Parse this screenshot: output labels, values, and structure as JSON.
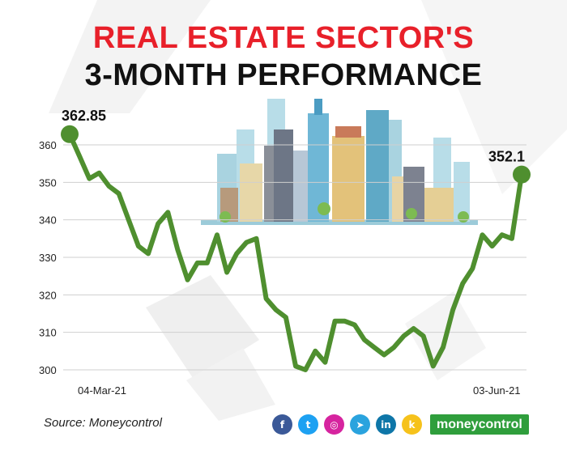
{
  "title": {
    "line1": "REAL ESTATE SECTOR'S",
    "line2": "3-MONTH PERFORMANCE"
  },
  "colors": {
    "line": "#4f8f2f",
    "title_red": "#e8202a",
    "grid": "#cfcfcf",
    "brand": "#2f9e3c"
  },
  "chart_data": {
    "type": "line",
    "title": "REAL ESTATE SECTOR'S 3-MONTH PERFORMANCE",
    "xlabel": "",
    "ylabel": "",
    "ylim": [
      298,
      362
    ],
    "yticks": [
      300,
      310,
      320,
      330,
      340,
      350,
      360
    ],
    "xtick_labels": [
      "04-Mar-21",
      "03-Jun-21"
    ],
    "annotations": {
      "start": "362.85",
      "end": "352.1"
    },
    "series": [
      {
        "name": "Real Estate Sector",
        "values": [
          362.85,
          357,
          351,
          352.5,
          349,
          347,
          340,
          333,
          331,
          339,
          342,
          332,
          324,
          328.5,
          328.5,
          336,
          326,
          331,
          334,
          335,
          319,
          316,
          314,
          301,
          300,
          305,
          302,
          313,
          313,
          312,
          308,
          306,
          304,
          306,
          309,
          311,
          309,
          301,
          306,
          316,
          323,
          327,
          336,
          333,
          336,
          335,
          352.1
        ]
      }
    ]
  },
  "source": "Source: Moneycontrol",
  "social": [
    {
      "name": "facebook-icon",
      "glyph": "f",
      "color": "#3b5998"
    },
    {
      "name": "twitter-icon",
      "glyph": "t",
      "color": "#1da1f2"
    },
    {
      "name": "instagram-icon",
      "glyph": "◎",
      "color": "#d6249f"
    },
    {
      "name": "telegram-icon",
      "glyph": "➤",
      "color": "#2aa3de"
    },
    {
      "name": "linkedin-icon",
      "glyph": "in",
      "color": "#0e76a8"
    },
    {
      "name": "koo-icon",
      "glyph": "k",
      "color": "#f6c21b"
    }
  ],
  "brand": "moneycontrol"
}
